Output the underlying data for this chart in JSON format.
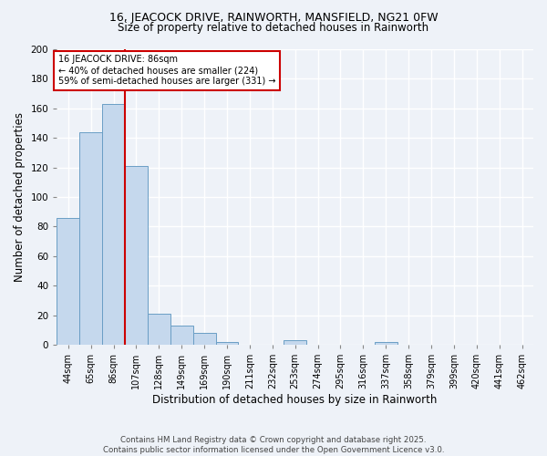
{
  "title_line1": "16, JEACOCK DRIVE, RAINWORTH, MANSFIELD, NG21 0FW",
  "title_line2": "Size of property relative to detached houses in Rainworth",
  "xlabel": "Distribution of detached houses by size in Rainworth",
  "ylabel": "Number of detached properties",
  "bar_labels": [
    "44sqm",
    "65sqm",
    "86sqm",
    "107sqm",
    "128sqm",
    "149sqm",
    "169sqm",
    "190sqm",
    "211sqm",
    "232sqm",
    "253sqm",
    "274sqm",
    "295sqm",
    "316sqm",
    "337sqm",
    "358sqm",
    "379sqm",
    "399sqm",
    "420sqm",
    "441sqm",
    "462sqm"
  ],
  "bar_values": [
    86,
    144,
    163,
    121,
    21,
    13,
    8,
    2,
    0,
    0,
    3,
    0,
    0,
    0,
    2,
    0,
    0,
    0,
    0,
    0,
    0
  ],
  "bar_color": "#c5d8ed",
  "bar_edge_color": "#6a9ec5",
  "red_line_index": 2,
  "annotation_line1": "16 JEACOCK DRIVE: 86sqm",
  "annotation_line2": "← 40% of detached houses are smaller (224)",
  "annotation_line3": "59% of semi-detached houses are larger (331) →",
  "annotation_box_color": "#ffffff",
  "annotation_border_color": "#cc0000",
  "ylim": [
    0,
    200
  ],
  "yticks": [
    0,
    20,
    40,
    60,
    80,
    100,
    120,
    140,
    160,
    180,
    200
  ],
  "background_color": "#eef2f8",
  "grid_color": "#ffffff",
  "footer_line1": "Contains HM Land Registry data © Crown copyright and database right 2025.",
  "footer_line2": "Contains public sector information licensed under the Open Government Licence v3.0."
}
